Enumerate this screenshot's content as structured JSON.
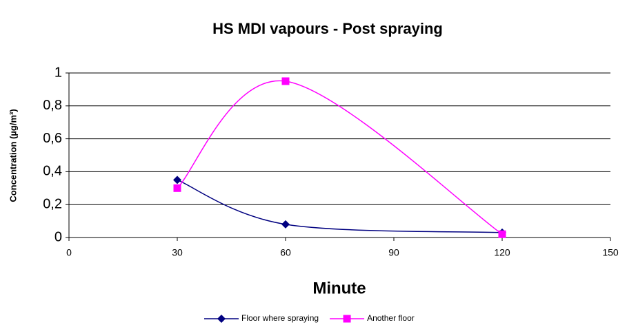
{
  "chart_data": {
    "type": "line",
    "title": "HS MDI vapours - Post spraying",
    "xlabel": "Minute",
    "ylabel": "Concentration (µg/m³)",
    "x": [
      30,
      60,
      120
    ],
    "series": [
      {
        "name": "Floor where spraying",
        "color": "#000080",
        "marker": "diamond",
        "values": [
          0.35,
          0.08,
          0.03
        ]
      },
      {
        "name": "Another floor",
        "color": "#ff00ff",
        "marker": "square",
        "values": [
          0.3,
          0.95,
          0.02
        ]
      }
    ],
    "xlim": [
      0,
      150
    ],
    "xticks": [
      0,
      30,
      60,
      90,
      120,
      150
    ],
    "ylim": [
      0,
      1
    ],
    "yticks": [
      0,
      {
        "value": 0.2,
        "label": "0,2"
      },
      {
        "value": 0.4,
        "label": "0,4"
      },
      {
        "value": 0.6,
        "label": "0,6"
      },
      {
        "value": 0.8,
        "label": "0,8"
      },
      1
    ],
    "grid": true,
    "smooth": true,
    "legend": "bottom"
  }
}
